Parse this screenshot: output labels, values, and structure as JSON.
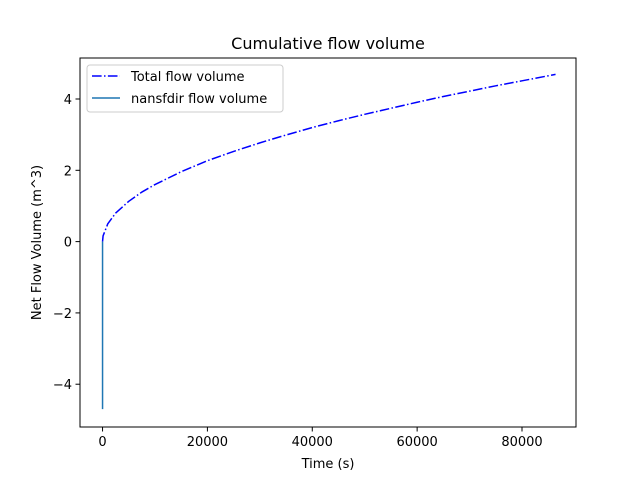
{
  "chart_data": {
    "type": "line",
    "title": "Cumulative flow volume",
    "xlabel": "Time (s)",
    "ylabel": "Net Flow Volume (m^3)",
    "xlim": [
      -4300,
      90300
    ],
    "ylim": [
      -5.2,
      5.15
    ],
    "x_ticks": [
      0,
      20000,
      40000,
      60000,
      80000
    ],
    "x_tick_labels": [
      "0",
      "20000",
      "40000",
      "60000",
      "80000"
    ],
    "y_ticks": [
      -4,
      -2,
      0,
      2,
      4
    ],
    "y_tick_labels": [
      "−4",
      "−2",
      "0",
      "2",
      "4"
    ],
    "grid": false,
    "legend_position": "upper-left",
    "series": [
      {
        "name": "Total flow volume",
        "color": "#0000ff",
        "linestyle": "dashdot",
        "x": [
          0,
          100,
          1000,
          2500,
          5000,
          7500,
          10000,
          15000,
          20000,
          25000,
          30000,
          35000,
          40000,
          45000,
          50000,
          55000,
          60000,
          65000,
          70000,
          75000,
          80000,
          86400
        ],
        "y": [
          0.0,
          0.16,
          0.5,
          0.8,
          1.13,
          1.39,
          1.6,
          1.96,
          2.27,
          2.53,
          2.77,
          2.99,
          3.2,
          3.39,
          3.57,
          3.74,
          3.91,
          4.07,
          4.22,
          4.37,
          4.51,
          4.69
        ]
      },
      {
        "name": "nansfdir flow volume",
        "color": "#1f77b4",
        "linestyle": "solid",
        "x": [
          0,
          0
        ],
        "y": [
          0.0,
          -4.7
        ]
      }
    ]
  }
}
